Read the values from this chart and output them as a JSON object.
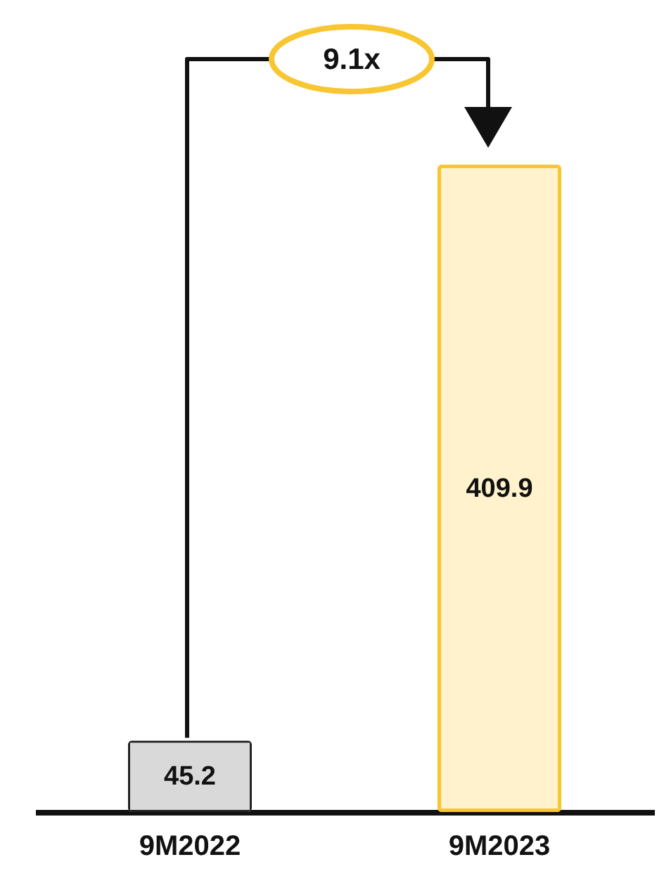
{
  "chart_data": {
    "type": "bar",
    "categories": [
      "9M2022",
      "9M2023"
    ],
    "values": [
      45.2,
      409.9
    ],
    "colors": [
      "#d9d9d9",
      "#fff2cc"
    ],
    "data_labels": true,
    "annotations": [
      "9.1x"
    ]
  }
}
